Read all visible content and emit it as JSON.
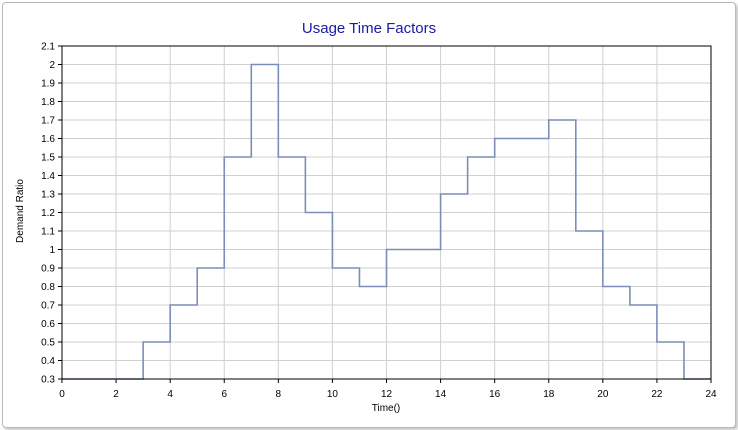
{
  "chart_data": {
    "type": "line",
    "step": true,
    "title": "Usage Time Factors",
    "xlabel": "Time()",
    "ylabel": "Demand Ratio",
    "xlim": [
      0,
      24
    ],
    "ylim": [
      0.3,
      2.1
    ],
    "x_ticks": [
      0,
      2,
      4,
      6,
      8,
      10,
      12,
      14,
      16,
      18,
      20,
      22,
      24
    ],
    "x_tick_labels": [
      "0",
      "2",
      "4",
      "6",
      "8",
      "10",
      "12",
      "14",
      "16",
      "18",
      "20",
      "22",
      "24"
    ],
    "y_ticks": [
      0.3,
      0.4,
      0.5,
      0.6,
      0.7,
      0.8,
      0.9,
      1.0,
      1.1,
      1.2,
      1.3,
      1.4,
      1.5,
      1.6,
      1.7,
      1.8,
      1.9,
      2.0,
      2.1
    ],
    "y_tick_labels": [
      "0.3",
      "0.4",
      "0.5",
      "0.6",
      "0.7",
      "0.8",
      "0.9",
      "1",
      "1.1",
      "1.2",
      "1.3",
      "1.4",
      "1.5",
      "1.6",
      "1.7",
      "1.8",
      "1.9",
      "2",
      "2.1"
    ],
    "grid": true,
    "series": [
      {
        "x": [
          0,
          1,
          2,
          3,
          4,
          5,
          6,
          7,
          8,
          9,
          10,
          11,
          12,
          13,
          14,
          15,
          16,
          17,
          18,
          19,
          20,
          21,
          22,
          23
        ],
        "values": [
          0.3,
          0.3,
          0.3,
          0.5,
          0.7,
          0.9,
          1.5,
          2.0,
          1.5,
          1.2,
          0.9,
          0.8,
          1.0,
          1.0,
          1.3,
          1.5,
          1.6,
          1.6,
          1.7,
          1.1,
          0.8,
          0.7,
          0.5,
          0.3
        ]
      }
    ],
    "colors": {
      "title": "#1a1aa6",
      "line": "#7b8eb8",
      "grid": "#d0d0d0",
      "axis": "#000000"
    }
  }
}
